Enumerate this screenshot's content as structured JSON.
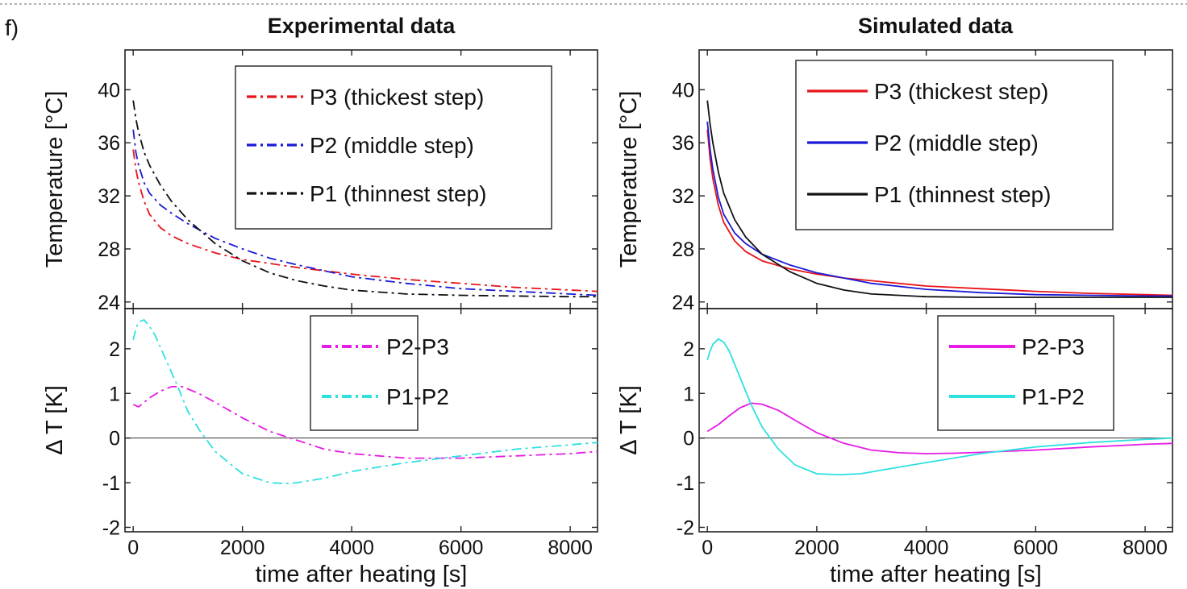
{
  "figure": {
    "panel_label": "f)",
    "left_title": "Experimental data",
    "right_title": "Simulated data"
  },
  "chart_data": [
    {
      "id": "exp_temp",
      "type": "line",
      "title": "Experimental data",
      "xlabel": "",
      "ylabel": "Temperature [°C]",
      "xlim": [
        -150,
        8500
      ],
      "ylim": [
        23.5,
        43
      ],
      "yticks": [
        24,
        28,
        32,
        36,
        40
      ],
      "legend_position": "top-right",
      "series": [
        {
          "name": "P3 (thickest step)",
          "color": "#e8141a",
          "style": "dashdot",
          "x": [
            0,
            50,
            100,
            200,
            300,
            500,
            700,
            1000,
            1500,
            2000,
            2500,
            3000,
            4000,
            5000,
            6000,
            7000,
            8000,
            8500
          ],
          "y": [
            35.5,
            34.0,
            33.0,
            31.6,
            30.6,
            29.6,
            29.0,
            28.4,
            27.7,
            27.2,
            26.9,
            26.6,
            26.1,
            25.7,
            25.4,
            25.1,
            24.9,
            24.8
          ]
        },
        {
          "name": "P2 (middle step)",
          "color": "#1a1ad6",
          "style": "dashdot",
          "x": [
            0,
            50,
            100,
            200,
            300,
            500,
            700,
            1000,
            1500,
            2000,
            2500,
            3000,
            4000,
            5000,
            6000,
            7000,
            8000,
            8500
          ],
          "y": [
            37.0,
            35.3,
            34.3,
            33.0,
            32.2,
            31.3,
            30.7,
            29.9,
            28.8,
            28.0,
            27.3,
            26.8,
            25.9,
            25.4,
            25.0,
            24.8,
            24.6,
            24.5
          ]
        },
        {
          "name": "P1 (thinnest step)",
          "color": "#111111",
          "style": "dashdot",
          "x": [
            0,
            50,
            100,
            200,
            300,
            500,
            700,
            1000,
            1500,
            2000,
            2500,
            3000,
            3500,
            4000,
            5000,
            6000,
            7000,
            8000,
            8500
          ],
          "y": [
            39.2,
            37.8,
            36.8,
            35.3,
            34.3,
            32.8,
            31.6,
            30.2,
            28.4,
            27.1,
            26.2,
            25.6,
            25.2,
            24.9,
            24.6,
            24.5,
            24.45,
            24.4,
            24.4
          ]
        }
      ]
    },
    {
      "id": "exp_delta",
      "type": "line",
      "xlabel": "time after heating [s]",
      "ylabel": "Δ T [K]",
      "xlim": [
        -150,
        8500
      ],
      "ylim": [
        -2.1,
        2.9
      ],
      "yticks": [
        -2,
        -1,
        0,
        1,
        2
      ],
      "xticks": [
        0,
        2000,
        4000,
        6000,
        8000
      ],
      "zero_line": true,
      "legend_position": "top-right",
      "series": [
        {
          "name": "P2-P3",
          "color": "#e61be6",
          "style": "dashdot",
          "x": [
            0,
            100,
            200,
            300,
            500,
            700,
            900,
            1200,
            1500,
            2000,
            2500,
            3000,
            3500,
            4000,
            4500,
            5000,
            6000,
            7000,
            8000,
            8500
          ],
          "y": [
            0.75,
            0.7,
            0.8,
            0.9,
            1.05,
            1.15,
            1.15,
            1.0,
            0.8,
            0.45,
            0.15,
            -0.05,
            -0.25,
            -0.35,
            -0.4,
            -0.45,
            -0.45,
            -0.4,
            -0.35,
            -0.3
          ]
        },
        {
          "name": "P1-P2",
          "color": "#2fe0e0",
          "style": "dashdot",
          "x": [
            0,
            50,
            100,
            200,
            300,
            400,
            600,
            800,
            1000,
            1200,
            1500,
            2000,
            2500,
            2800,
            3000,
            3500,
            4000,
            5000,
            6000,
            7000,
            8000,
            8500
          ],
          "y": [
            2.2,
            2.45,
            2.6,
            2.65,
            2.5,
            2.3,
            1.75,
            1.2,
            0.6,
            0.2,
            -0.3,
            -0.8,
            -1.0,
            -1.02,
            -1.0,
            -0.9,
            -0.75,
            -0.55,
            -0.4,
            -0.25,
            -0.15,
            -0.1
          ]
        }
      ]
    },
    {
      "id": "sim_temp",
      "type": "line",
      "title": "Simulated data",
      "xlabel": "",
      "ylabel": "Temperature [°C]",
      "xlim": [
        -150,
        8500
      ],
      "ylim": [
        23.5,
        43
      ],
      "yticks": [
        24,
        28,
        32,
        36,
        40
      ],
      "legend_position": "top-right",
      "series": [
        {
          "name": "P3 (thickest step)",
          "color": "#e8141a",
          "style": "solid",
          "x": [
            0,
            50,
            100,
            200,
            300,
            500,
            700,
            1000,
            1500,
            2000,
            2500,
            3000,
            4000,
            5000,
            6000,
            7000,
            8000,
            8500
          ],
          "y": [
            37.0,
            34.8,
            33.3,
            31.3,
            30.0,
            28.6,
            27.8,
            27.1,
            26.5,
            26.1,
            25.8,
            25.6,
            25.2,
            25.0,
            24.8,
            24.65,
            24.55,
            24.5
          ]
        },
        {
          "name": "P2 (middle step)",
          "color": "#1a1ad6",
          "style": "solid",
          "x": [
            0,
            50,
            100,
            200,
            300,
            500,
            700,
            1000,
            1500,
            2000,
            2500,
            3000,
            4000,
            5000,
            6000,
            7000,
            8000,
            8500
          ],
          "y": [
            37.6,
            35.5,
            34.0,
            31.9,
            30.6,
            29.2,
            28.4,
            27.6,
            26.8,
            26.2,
            25.8,
            25.4,
            24.95,
            24.7,
            24.55,
            24.5,
            24.45,
            24.45
          ]
        },
        {
          "name": "P1 (thinnest step)",
          "color": "#111111",
          "style": "solid",
          "x": [
            0,
            50,
            100,
            200,
            300,
            500,
            700,
            1000,
            1500,
            2000,
            2500,
            3000,
            4000,
            5000,
            6000,
            7000,
            8000,
            8500
          ],
          "y": [
            39.2,
            37.4,
            36.0,
            33.8,
            32.2,
            30.2,
            28.9,
            27.6,
            26.3,
            25.4,
            24.9,
            24.6,
            24.4,
            24.35,
            24.35,
            24.35,
            24.35,
            24.35
          ]
        }
      ]
    },
    {
      "id": "sim_delta",
      "type": "line",
      "xlabel": "time after heating [s]",
      "ylabel": "Δ T [K]",
      "xlim": [
        -150,
        8500
      ],
      "ylim": [
        -2.1,
        2.9
      ],
      "yticks": [
        -2,
        -1,
        0,
        1,
        2
      ],
      "xticks": [
        0,
        2000,
        4000,
        6000,
        8000
      ],
      "zero_line": true,
      "legend_position": "top-right",
      "series": [
        {
          "name": "P2-P3",
          "color": "#e61be6",
          "style": "solid",
          "x": [
            0,
            200,
            400,
            600,
            800,
            1000,
            1300,
            1600,
            2000,
            2500,
            3000,
            3500,
            4000,
            4500,
            5000,
            6000,
            7000,
            8000,
            8500
          ],
          "y": [
            0.15,
            0.3,
            0.5,
            0.68,
            0.78,
            0.76,
            0.62,
            0.4,
            0.12,
            -0.12,
            -0.27,
            -0.33,
            -0.35,
            -0.34,
            -0.32,
            -0.27,
            -0.2,
            -0.14,
            -0.12
          ]
        },
        {
          "name": "P1-P2",
          "color": "#2fe0e0",
          "style": "solid",
          "x": [
            0,
            50,
            100,
            200,
            300,
            400,
            600,
            800,
            1000,
            1300,
            1600,
            2000,
            2400,
            2800,
            3500,
            4000,
            5000,
            6000,
            7000,
            8000,
            8500
          ],
          "y": [
            1.75,
            1.95,
            2.1,
            2.22,
            2.15,
            1.95,
            1.35,
            0.75,
            0.25,
            -0.25,
            -0.6,
            -0.8,
            -0.82,
            -0.8,
            -0.65,
            -0.55,
            -0.35,
            -0.2,
            -0.1,
            -0.03,
            0.0
          ]
        }
      ]
    }
  ]
}
